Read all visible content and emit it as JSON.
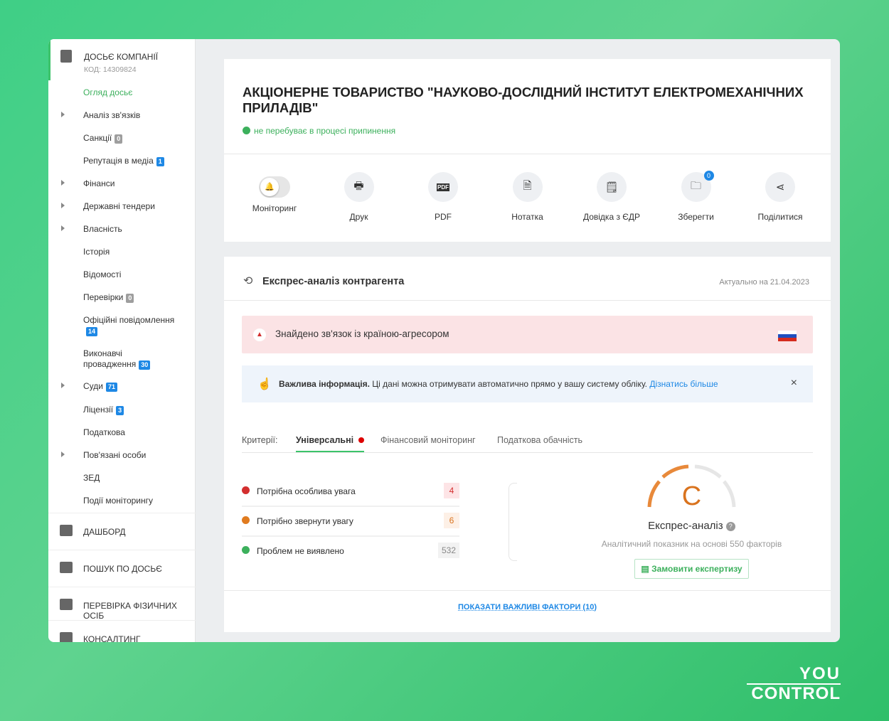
{
  "sidebar": {
    "header": {
      "title": "ДОСЬЄ КОМПАНІЇ",
      "code": "КОД: 14309824"
    },
    "items": [
      {
        "label": "Огляд досьє",
        "active": true
      },
      {
        "label": "Аналіз зв'язків",
        "expandable": true
      },
      {
        "label": "Санкції",
        "badge": "0",
        "badge_color": "gray"
      },
      {
        "label": "Репутація в медіа",
        "badge": "1",
        "badge_color": "blue"
      },
      {
        "label": "Фінанси",
        "expandable": true
      },
      {
        "label": "Державні тендери",
        "expandable": true
      },
      {
        "label": "Власність",
        "expandable": true
      },
      {
        "label": "Історія"
      },
      {
        "label": "Відомості"
      },
      {
        "label": "Перевірки",
        "badge": "0",
        "badge_color": "gray"
      },
      {
        "label": "Офіційні повідомлення",
        "badge": "14",
        "badge_color": "blue"
      },
      {
        "label": "Виконавчі провадження",
        "badge": "30",
        "badge_color": "blue"
      },
      {
        "label": "Суди",
        "badge": "71",
        "badge_color": "blue",
        "expandable": true
      },
      {
        "label": "Ліцензії",
        "badge": "3",
        "badge_color": "blue"
      },
      {
        "label": "Податкова"
      },
      {
        "label": "Пов'язані особи",
        "expandable": true
      },
      {
        "label": "ЗЕД"
      },
      {
        "label": "Події моніторингу"
      }
    ],
    "sections": [
      {
        "label": "ДАШБОРД",
        "icon": "dashboard-icon"
      },
      {
        "label": "ПОШУК ПО ДОСЬЄ",
        "icon": "folder-search-icon"
      },
      {
        "label": "ПЕРЕВІРКА ФІЗИЧНИХ ОСІБ",
        "icon": "person-check-icon"
      },
      {
        "label": "КОНСАЛТИНГ",
        "icon": "detective-icon"
      }
    ]
  },
  "company": {
    "name": "АКЦІОНЕРНЕ ТОВАРИСТВО \"НАУКОВО-ДОСЛІДНИЙ ІНСТИТУТ ЕЛЕКТРОМЕХАНІЧНИХ ПРИЛАДІВ\"",
    "status": "не перебуває в процесі припинення"
  },
  "actions": [
    {
      "label": "Моніторинг",
      "icon": "bell-toggle-icon"
    },
    {
      "label": "Друк",
      "icon": "printer-icon"
    },
    {
      "label": "PDF",
      "icon": "pdf-icon"
    },
    {
      "label": "Нотатка",
      "icon": "note-icon"
    },
    {
      "label": "Довідка з ЄДР",
      "icon": "document-icon"
    },
    {
      "label": "Зберегти",
      "icon": "folder-icon",
      "count": "0"
    },
    {
      "label": "Поділитися",
      "icon": "share-icon"
    }
  ],
  "express": {
    "title": "Експрес-аналіз контрагента",
    "date": "Актуально на 21.04.2023",
    "alert": "Знайдено зв'язок із країною-агресором",
    "info_bold": "Важлива інформація.",
    "info_text": " Ці дані можна отримувати автоматично прямо у вашу систему обліку.",
    "info_link": "Дізнатись більше",
    "tabs_label": "Критерії:",
    "tabs": [
      "Універсальні",
      "Фінансовий моніторинг",
      "Податкова обачність"
    ],
    "active_tab": 0,
    "criteria": [
      {
        "label": "Потрібна особлива увага",
        "count": "4",
        "color": "#d32f2f"
      },
      {
        "label": "Потрібно звернути увагу",
        "count": "6",
        "color": "#e07b1f"
      },
      {
        "label": "Проблем не виявлено",
        "count": "532",
        "color": "#3cb05c"
      }
    ],
    "grade": "C",
    "gauge_level": "2 of 4",
    "score_title": "Експрес-аналіз",
    "score_sub": "Аналітичний показник на основі 550 факторів",
    "order_button": "Замовити експертизу",
    "show_factors": "ПОКАЗАТИ ВАЖЛИВІ ФАКТОРИ (10)"
  },
  "brand": {
    "line1": "YOU",
    "line2": "CONTROL"
  },
  "colors": {
    "accent": "#3cc36a",
    "link": "#1e88e5",
    "alert_bg": "#fbe3e5",
    "grade": "#d9731e"
  }
}
